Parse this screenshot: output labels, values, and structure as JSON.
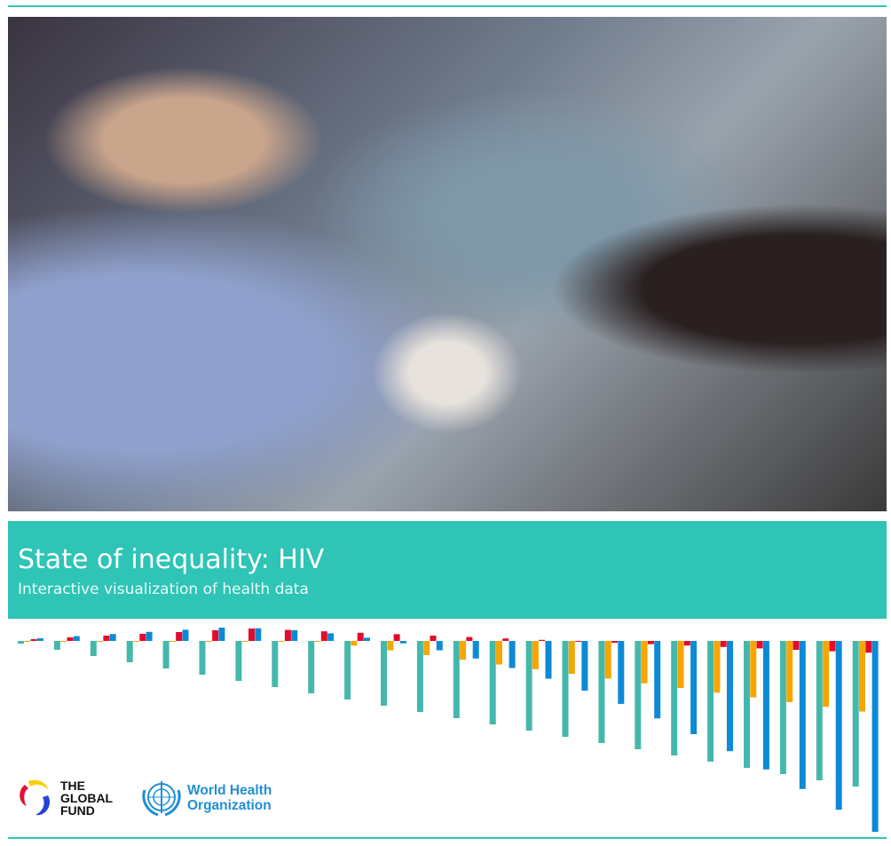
{
  "banner": {
    "title": "State of inequality: HIV",
    "subtitle": "Interactive visualization of health data"
  },
  "logos": {
    "global_fund": [
      "THE",
      "GLOBAL",
      "FUND"
    ],
    "who": [
      "World Health",
      "Organization"
    ]
  },
  "colors": {
    "accent": "#2ec4b6",
    "bar_teal": "#45b8ac",
    "bar_orange": "#f7a600",
    "bar_red": "#e30b2b",
    "bar_blue": "#0d8ad6"
  },
  "hero_image": "photo of health worker doing finger-prick HIV test"
}
